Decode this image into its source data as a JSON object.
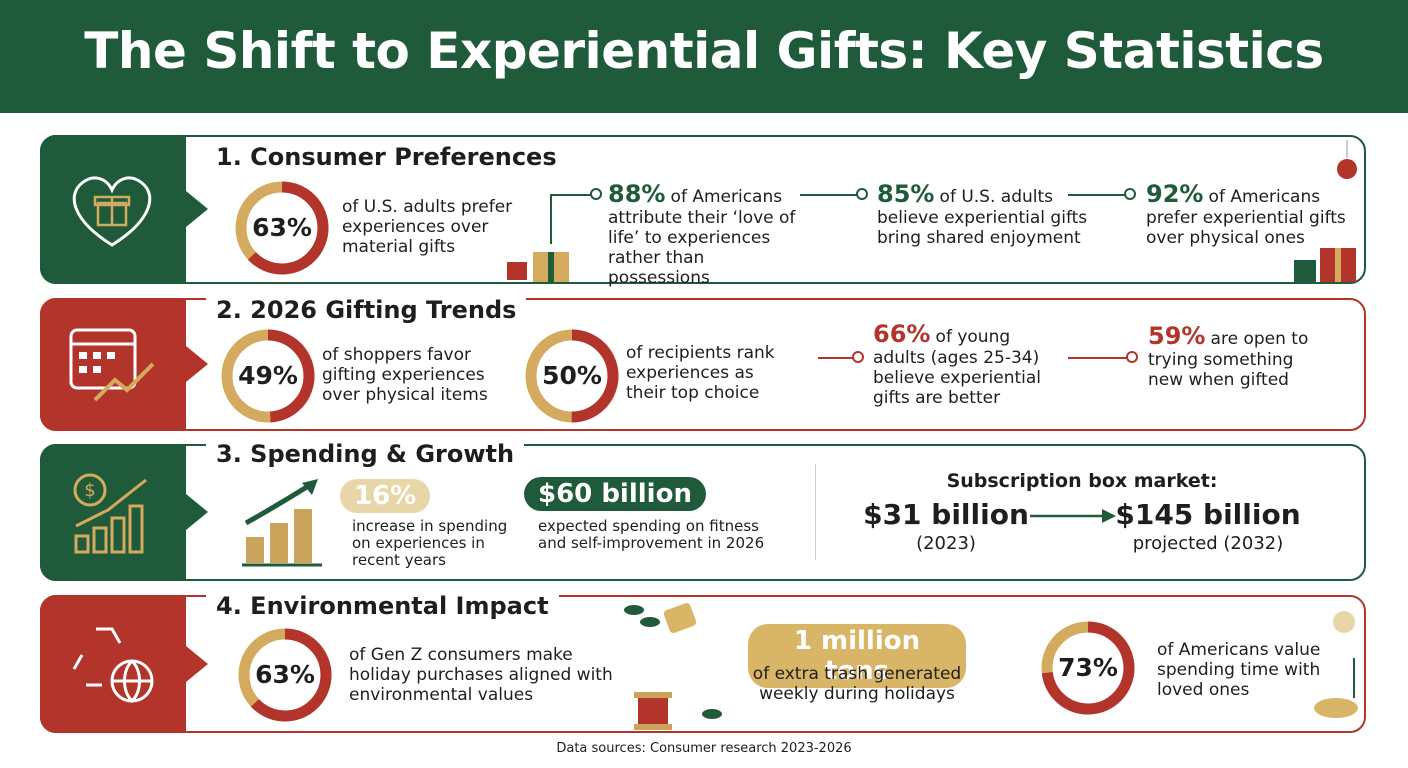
{
  "header": {
    "title": "The Shift to Experiential Gifts: Key Statistics"
  },
  "sections": [
    {
      "title": "1. Consumer Preferences",
      "donuts": [
        {
          "value": 63,
          "value_label": "63%",
          "text": "of U.S. adults prefer experiences over material gifts"
        }
      ],
      "facts": [
        {
          "stat": "88%",
          "text": "of Americans attribute their ‘love of life’ to experiences rather than possessions"
        },
        {
          "stat": "85%",
          "text": "of U.S. adults believe experiential gifts bring shared enjoyment"
        },
        {
          "stat": "92%",
          "text": "of Americans prefer experiential gifts over physical ones"
        }
      ]
    },
    {
      "title": "2. 2026 Gifting Trends",
      "donuts": [
        {
          "value": 49,
          "value_label": "49%",
          "text": "of shoppers favor gifting experiences over physical items"
        },
        {
          "value": 50,
          "value_label": "50%",
          "text": "of recipients rank experiences as their top choice"
        }
      ],
      "facts": [
        {
          "stat": "66%",
          "text": "of young adults (ages 25-34) believe experiential gifts are better"
        },
        {
          "stat": "59%",
          "text": "are open to trying something new when gifted"
        }
      ]
    },
    {
      "title": "3. Spending & Growth",
      "facts": [
        {
          "stat": "16%",
          "text": "increase in spending on experiences in recent years"
        },
        {
          "stat": "$60 billion",
          "text": "expected spending on fitness and self-improvement in 2026"
        }
      ],
      "market": {
        "title": "Subscription box market:",
        "from": {
          "amount": "$31 billion",
          "note": "(2023)"
        },
        "to": {
          "amount": "$145 billion",
          "note": "projected (2032)"
        }
      }
    },
    {
      "title": "4. Environmental Impact",
      "donuts": [
        {
          "value": 63,
          "value_label": "63%",
          "text": "of Gen Z consumers make holiday purchases aligned with environmental values"
        },
        {
          "value": 73,
          "value_label": "73%",
          "text": "of Americans value spending time with loved ones"
        }
      ],
      "facts": [
        {
          "stat": "1 million tons",
          "text": "of extra trash generated weekly during holidays"
        }
      ]
    }
  ],
  "footer": "Data sources: Consumer research 2023-2026"
}
